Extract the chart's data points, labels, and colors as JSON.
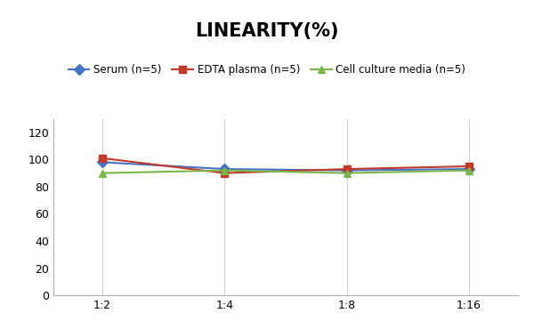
{
  "title": "LINEARITY(%)",
  "title_fontsize": 15,
  "title_fontweight": "bold",
  "x_labels": [
    "1:2",
    "1:4",
    "1:8",
    "1:16"
  ],
  "series": [
    {
      "label": "Serum (n=5)",
      "values": [
        98,
        93,
        92,
        93
      ],
      "color": "#4472C4",
      "marker": "D",
      "markersize": 6,
      "linewidth": 1.5
    },
    {
      "label": "EDTA plasma (n=5)",
      "values": [
        101,
        90,
        93,
        95
      ],
      "color": "#C0392B",
      "marker": "s",
      "markersize": 6,
      "linewidth": 1.5
    },
    {
      "label": "Cell culture media (n=5)",
      "values": [
        90,
        92,
        90,
        92
      ],
      "color": "#7AB648",
      "marker": "^",
      "markersize": 6,
      "linewidth": 1.5
    }
  ],
  "ylim": [
    0,
    130
  ],
  "yticks": [
    0,
    20,
    40,
    60,
    80,
    100,
    120
  ],
  "background_color": "#ffffff",
  "grid_color": "#d0d0d0",
  "legend_fontsize": 8.5,
  "axis_fontsize": 9
}
